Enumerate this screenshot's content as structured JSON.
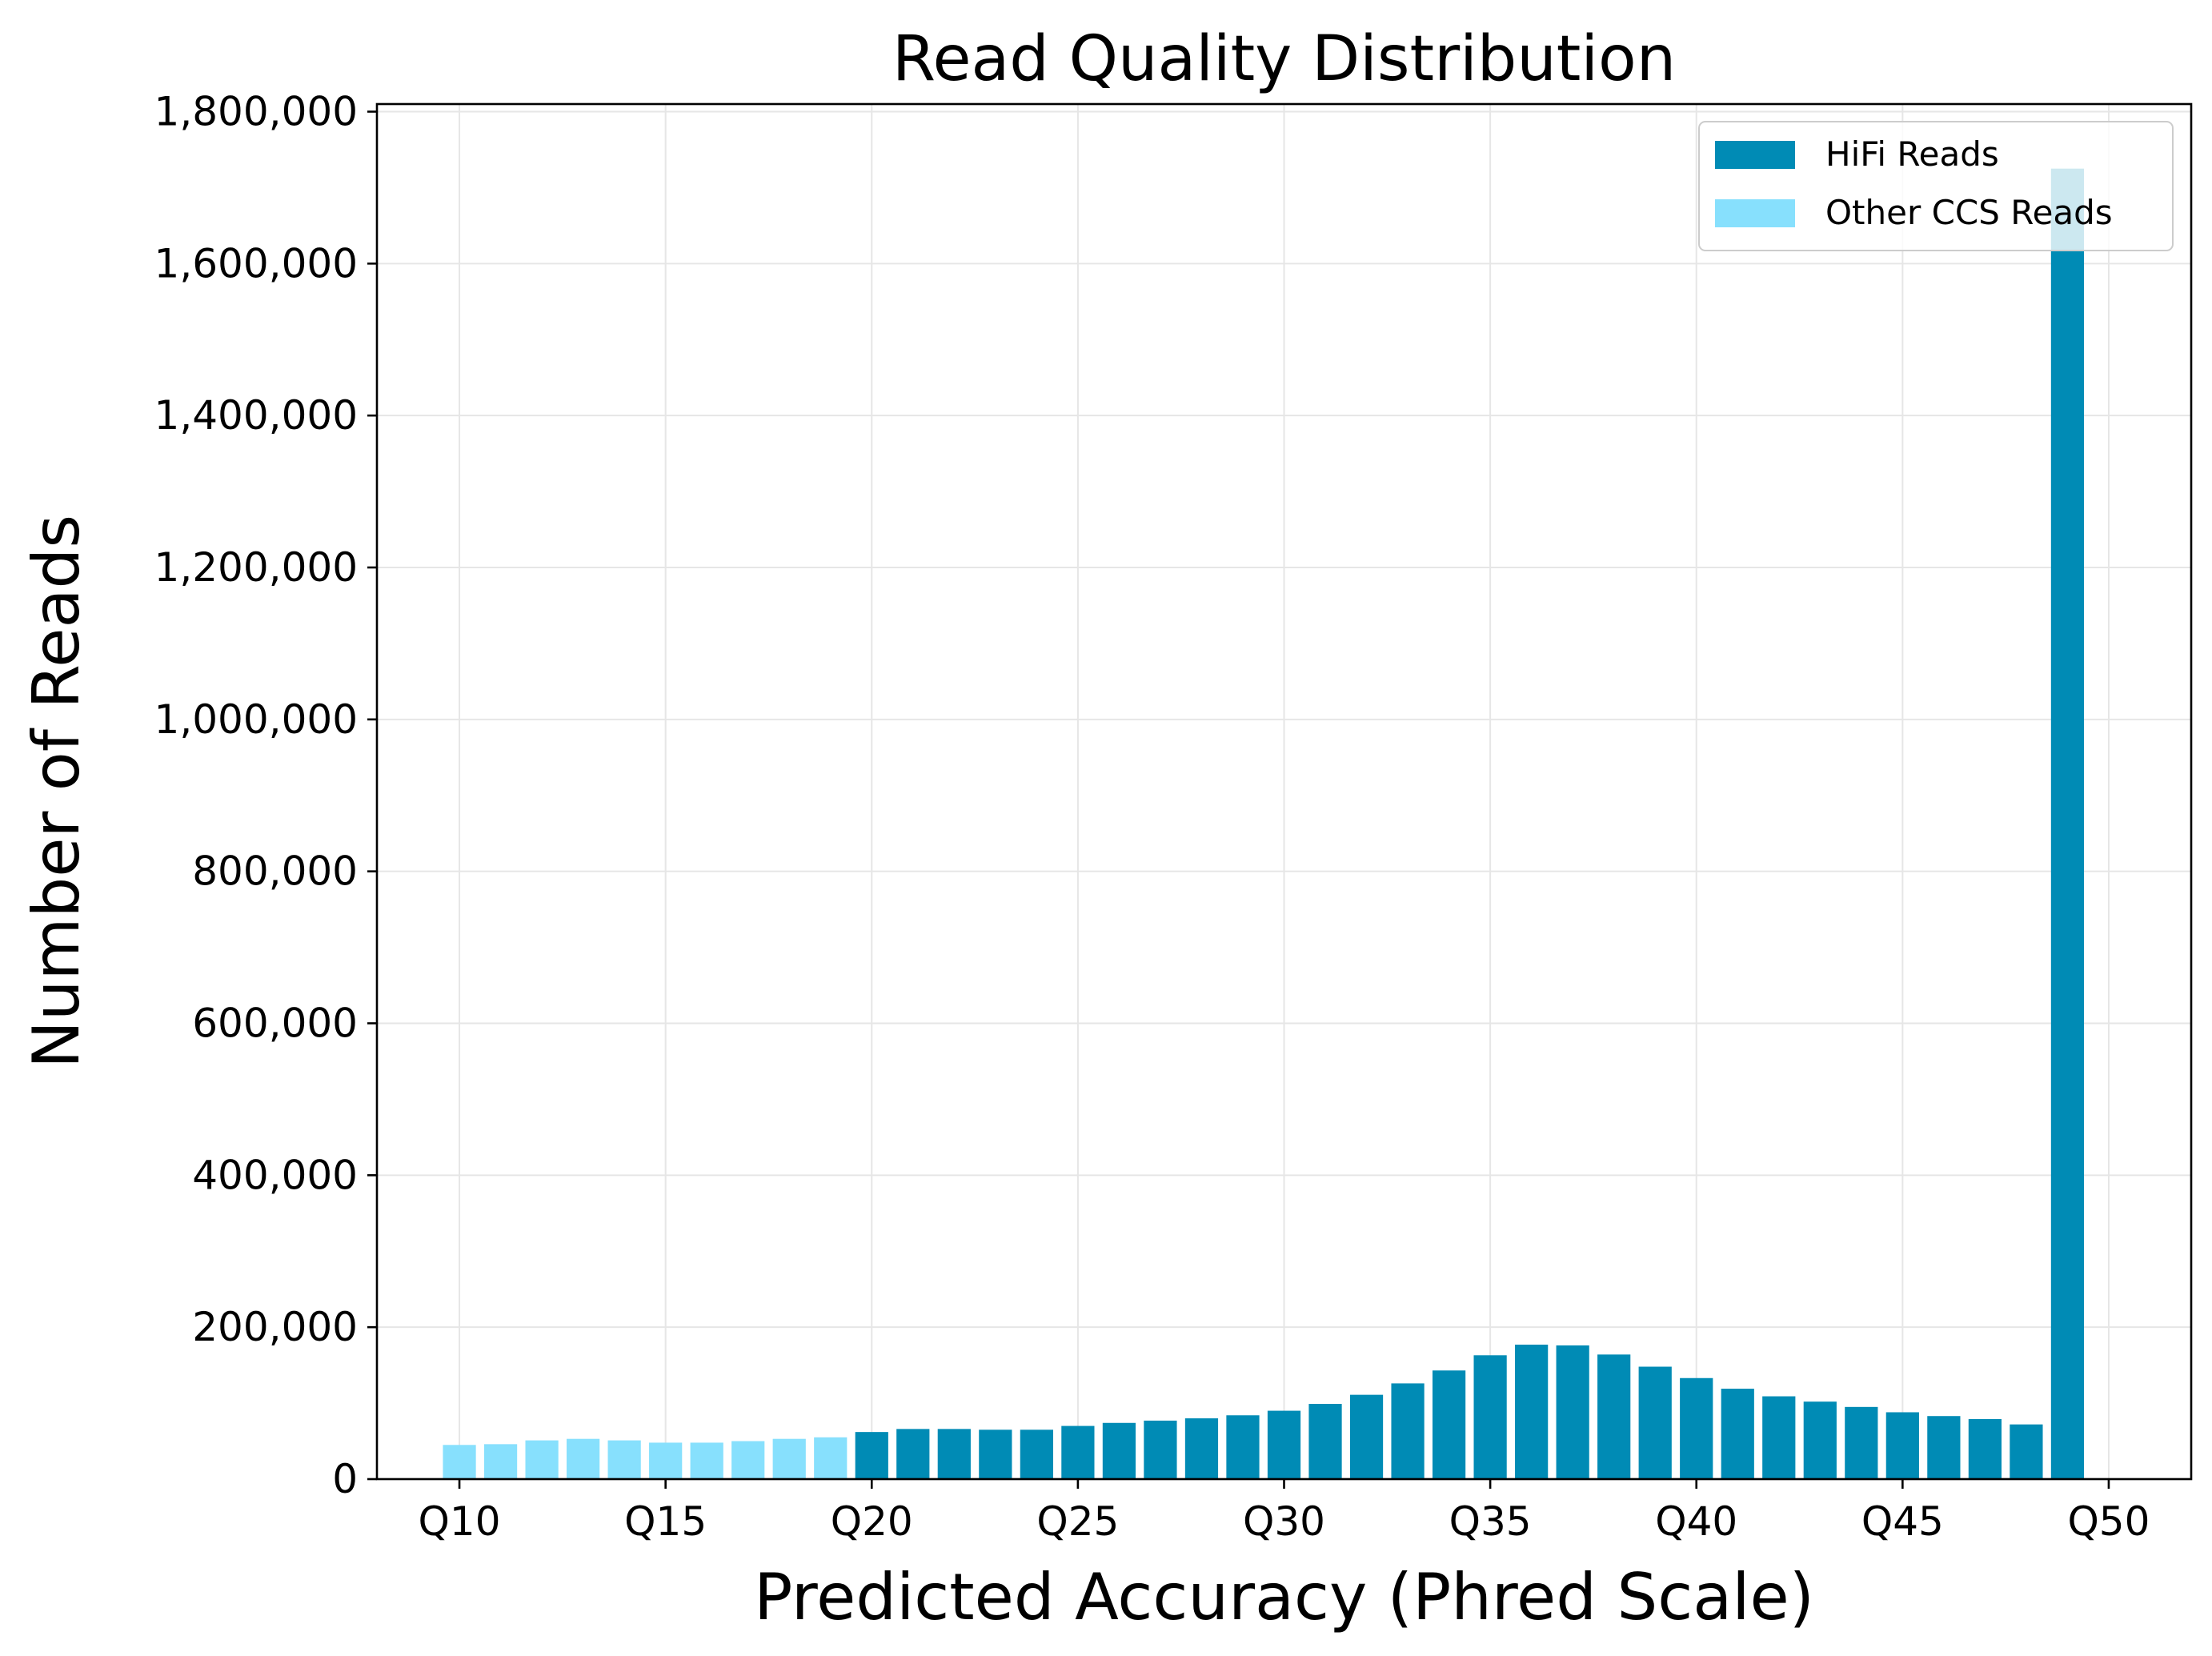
{
  "chart_data": {
    "type": "bar",
    "title": "Read Quality Distribution",
    "xlabel": "Predicted Accuracy (Phred Scale)",
    "ylabel": "Number of Reads",
    "xlim": [
      8,
      52
    ],
    "ylim": [
      0,
      1810000
    ],
    "x_ticks": [
      10,
      15,
      20,
      25,
      30,
      35,
      40,
      45,
      50
    ],
    "x_tick_labels": [
      "Q10",
      "Q15",
      "Q20",
      "Q25",
      "Q30",
      "Q35",
      "Q40",
      "Q45",
      "Q50"
    ],
    "y_ticks": [
      0,
      200000,
      400000,
      600000,
      800000,
      1000000,
      1200000,
      1400000,
      1600000,
      1800000
    ],
    "y_tick_labels": [
      "0",
      "200,000",
      "400,000",
      "600,000",
      "800,000",
      "1,000,000",
      "1,200,000",
      "1,400,000",
      "1,600,000",
      "1,800,000"
    ],
    "grid": true,
    "legend_position": "top-right",
    "series": [
      {
        "name": "HiFi Reads",
        "color": "#008bb5",
        "x": [
          20,
          21,
          22,
          23,
          24,
          25,
          26,
          27,
          28,
          29,
          30,
          31,
          32,
          33,
          34,
          35,
          36,
          37,
          38,
          39,
          40,
          41,
          42,
          43,
          44,
          45,
          46,
          47,
          48,
          49
        ],
        "values": [
          62000,
          66000,
          66000,
          65000,
          65000,
          70000,
          74000,
          77000,
          80000,
          84000,
          90000,
          99000,
          111000,
          126000,
          143000,
          163000,
          177000,
          176000,
          164000,
          148000,
          133000,
          119000,
          109000,
          102000,
          95000,
          88000,
          83000,
          79000,
          72000,
          1725000
        ]
      },
      {
        "name": "Other CCS Reads",
        "color": "#87e0fd",
        "x": [
          10,
          11,
          12,
          13,
          14,
          15,
          16,
          17,
          18,
          19
        ],
        "values": [
          45000,
          46000,
          51000,
          53000,
          51000,
          48000,
          48000,
          50000,
          53000,
          55000
        ]
      }
    ]
  }
}
